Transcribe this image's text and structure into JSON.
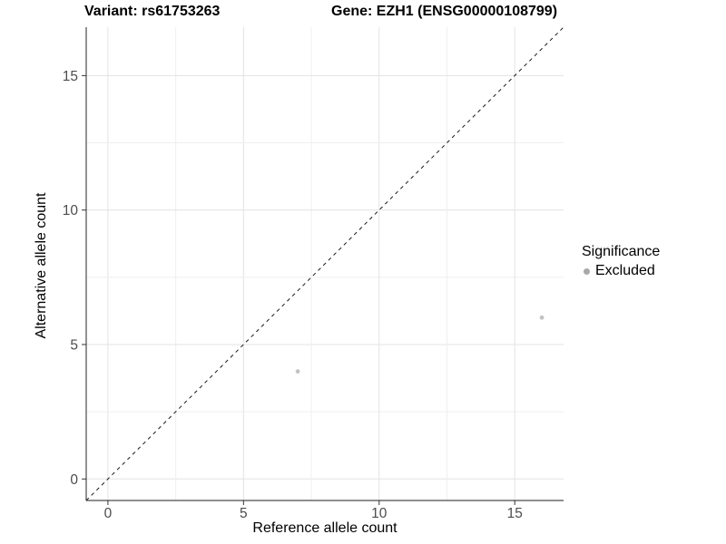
{
  "chart_data": {
    "type": "scatter",
    "titles": {
      "left": "Variant: rs61753263",
      "right": "Gene: EZH1 (ENSG00000108799)"
    },
    "xlabel": "Reference allele count",
    "ylabel": "Alternative allele count",
    "xlim": [
      -0.8,
      16.8
    ],
    "ylim": [
      -0.8,
      16.8
    ],
    "x_ticks": [
      0,
      5,
      10,
      15
    ],
    "y_ticks": [
      0,
      5,
      10,
      15
    ],
    "minor_grid_interval": 2.5,
    "grid": "on",
    "identity_line": {
      "equation": "y = x",
      "style": "dashed",
      "color": "#1a1a1a"
    },
    "series": [
      {
        "name": "Excluded",
        "color": "#c3c3c3",
        "points": [
          {
            "x": 7,
            "y": 4
          },
          {
            "x": 16,
            "y": 6
          }
        ]
      }
    ],
    "legend": {
      "title": "Significance",
      "position": "right",
      "items": [
        {
          "label": "Excluded",
          "color": "#a9a9a9"
        }
      ]
    }
  },
  "colors": {
    "background": "#ffffff",
    "axis_line": "#4a4a4a",
    "tick_mark": "#333333",
    "tick_label": "#4d4d4d",
    "grid_major": "#e3e3e3",
    "grid_minor": "#efefef"
  }
}
